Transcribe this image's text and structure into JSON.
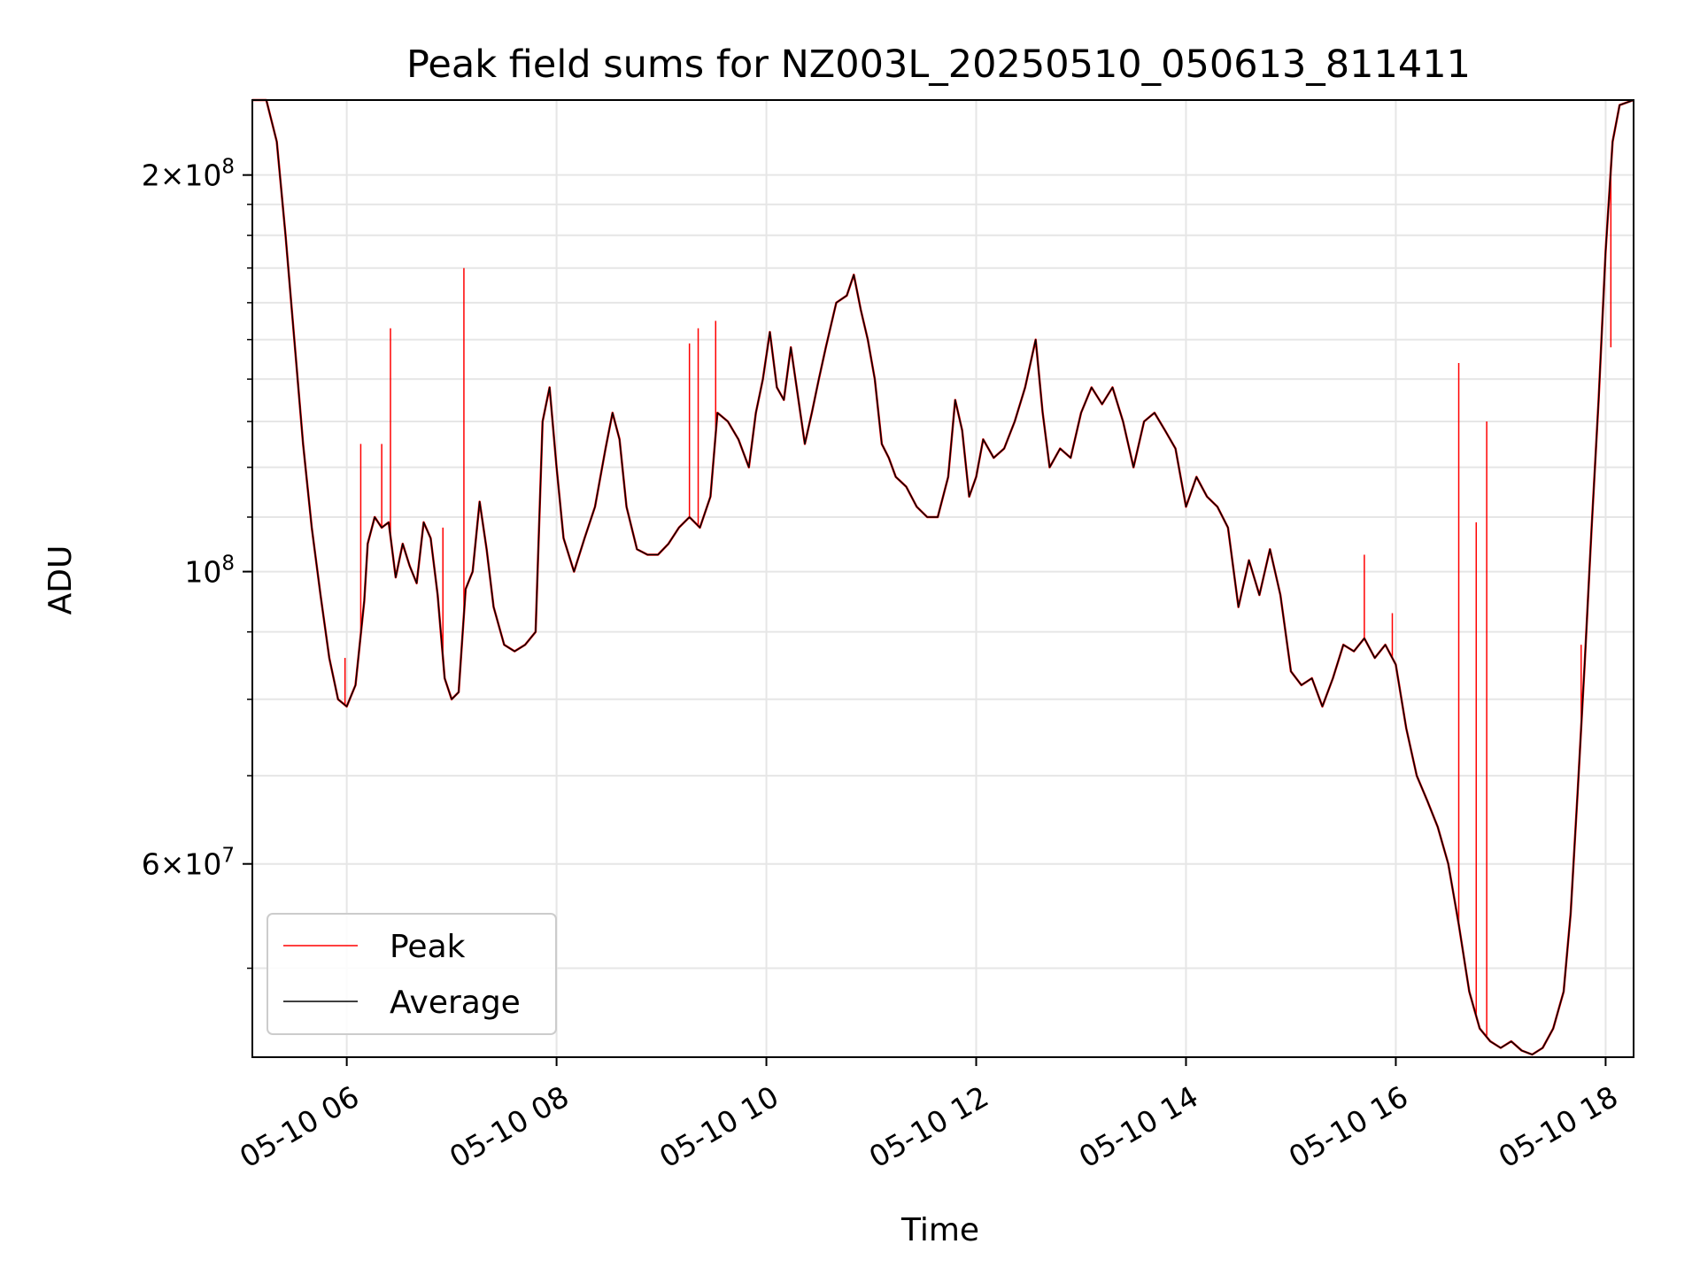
{
  "chart_data": {
    "type": "line",
    "title": "Peak field sums for NZ003L_20250510_050613_811411",
    "xlabel": "Time",
    "ylabel": "ADU",
    "yscale": "log",
    "xlim": [
      "05-10 05:06",
      "05-10 18:16"
    ],
    "ylim": [
      42800000,
      228000000
    ],
    "grid": true,
    "legend_position": "lower-left",
    "x_ticks": [
      "05-10 06",
      "05-10 08",
      "05-10 10",
      "05-10 12",
      "05-10 14",
      "05-10 16",
      "05-10 18"
    ],
    "y_ticks": [
      {
        "value": 60000000,
        "base": "6",
        "exp": "7"
      },
      {
        "value": 100000000,
        "base": "",
        "exp": "8"
      },
      {
        "value": 200000000,
        "base": "2",
        "exp": "8"
      }
    ],
    "series": [
      {
        "name": "Peak",
        "color": "#ff0000"
      },
      {
        "name": "Average",
        "color": "#000000"
      }
    ],
    "average_points": [
      [
        "05-10 05:06",
        228
      ],
      [
        "05-10 05:14",
        228
      ],
      [
        "05-10 05:20",
        212
      ],
      [
        "05-10 05:25",
        180
      ],
      [
        "05-10 05:30",
        150
      ],
      [
        "05-10 05:35",
        125
      ],
      [
        "05-10 05:40",
        108
      ],
      [
        "05-10 05:45",
        96
      ],
      [
        "05-10 05:50",
        86
      ],
      [
        "05-10 05:55",
        80
      ],
      [
        "05-10 06:00",
        79
      ],
      [
        "05-10 06:05",
        82
      ],
      [
        "05-10 06:10",
        95
      ],
      [
        "05-10 06:12",
        105
      ],
      [
        "05-10 06:16",
        110
      ],
      [
        "05-10 06:20",
        108
      ],
      [
        "05-10 06:24",
        109
      ],
      [
        "05-10 06:28",
        99
      ],
      [
        "05-10 06:32",
        105
      ],
      [
        "05-10 06:36",
        101
      ],
      [
        "05-10 06:40",
        98
      ],
      [
        "05-10 06:44",
        109
      ],
      [
        "05-10 06:48",
        106
      ],
      [
        "05-10 06:52",
        96
      ],
      [
        "05-10 06:56",
        83
      ],
      [
        "05-10 07:00",
        80
      ],
      [
        "05-10 07:04",
        81
      ],
      [
        "05-10 07:08",
        97
      ],
      [
        "05-10 07:12",
        100
      ],
      [
        "05-10 07:16",
        113
      ],
      [
        "05-10 07:20",
        104
      ],
      [
        "05-10 07:24",
        94
      ],
      [
        "05-10 07:30",
        88
      ],
      [
        "05-10 07:36",
        87
      ],
      [
        "05-10 07:42",
        88
      ],
      [
        "05-10 07:48",
        90
      ],
      [
        "05-10 07:52",
        130
      ],
      [
        "05-10 07:56",
        138
      ],
      [
        "05-10 08:00",
        120
      ],
      [
        "05-10 08:04",
        106
      ],
      [
        "05-10 08:10",
        100
      ],
      [
        "05-10 08:16",
        106
      ],
      [
        "05-10 08:22",
        112
      ],
      [
        "05-10 08:28",
        124
      ],
      [
        "05-10 08:32",
        132
      ],
      [
        "05-10 08:36",
        126
      ],
      [
        "05-10 08:40",
        112
      ],
      [
        "05-10 08:46",
        104
      ],
      [
        "05-10 08:52",
        103
      ],
      [
        "05-10 08:58",
        103
      ],
      [
        "05-10 09:04",
        105
      ],
      [
        "05-10 09:10",
        108
      ],
      [
        "05-10 09:16",
        110
      ],
      [
        "05-10 09:22",
        108
      ],
      [
        "05-10 09:28",
        114
      ],
      [
        "05-10 09:32",
        132
      ],
      [
        "05-10 09:38",
        130
      ],
      [
        "05-10 09:44",
        126
      ],
      [
        "05-10 09:50",
        120
      ],
      [
        "05-10 09:54",
        132
      ],
      [
        "05-10 09:58",
        140
      ],
      [
        "05-10 10:02",
        152
      ],
      [
        "05-10 10:06",
        138
      ],
      [
        "05-10 10:10",
        135
      ],
      [
        "05-10 10:14",
        148
      ],
      [
        "05-10 10:18",
        136
      ],
      [
        "05-10 10:22",
        125
      ],
      [
        "05-10 10:26",
        132
      ],
      [
        "05-10 10:30",
        140
      ],
      [
        "05-10 10:34",
        148
      ],
      [
        "05-10 10:40",
        160
      ],
      [
        "05-10 10:46",
        162
      ],
      [
        "05-10 10:50",
        168
      ],
      [
        "05-10 10:54",
        158
      ],
      [
        "05-10 10:58",
        150
      ],
      [
        "05-10 11:02",
        140
      ],
      [
        "05-10 11:06",
        125
      ],
      [
        "05-10 11:10",
        122
      ],
      [
        "05-10 11:14",
        118
      ],
      [
        "05-10 11:20",
        116
      ],
      [
        "05-10 11:26",
        112
      ],
      [
        "05-10 11:32",
        110
      ],
      [
        "05-10 11:38",
        110
      ],
      [
        "05-10 11:44",
        118
      ],
      [
        "05-10 11:48",
        135
      ],
      [
        "05-10 11:52",
        128
      ],
      [
        "05-10 11:56",
        114
      ],
      [
        "05-10 12:00",
        118
      ],
      [
        "05-10 12:04",
        126
      ],
      [
        "05-10 12:10",
        122
      ],
      [
        "05-10 12:16",
        124
      ],
      [
        "05-10 12:22",
        130
      ],
      [
        "05-10 12:28",
        138
      ],
      [
        "05-10 12:34",
        150
      ],
      [
        "05-10 12:38",
        132
      ],
      [
        "05-10 12:42",
        120
      ],
      [
        "05-10 12:48",
        124
      ],
      [
        "05-10 12:54",
        122
      ],
      [
        "05-10 13:00",
        132
      ],
      [
        "05-10 13:06",
        138
      ],
      [
        "05-10 13:12",
        134
      ],
      [
        "05-10 13:18",
        138
      ],
      [
        "05-10 13:24",
        130
      ],
      [
        "05-10 13:30",
        120
      ],
      [
        "05-10 13:36",
        130
      ],
      [
        "05-10 13:42",
        132
      ],
      [
        "05-10 13:48",
        128
      ],
      [
        "05-10 13:54",
        124
      ],
      [
        "05-10 14:00",
        112
      ],
      [
        "05-10 14:06",
        118
      ],
      [
        "05-10 14:12",
        114
      ],
      [
        "05-10 14:18",
        112
      ],
      [
        "05-10 14:24",
        108
      ],
      [
        "05-10 14:30",
        94
      ],
      [
        "05-10 14:36",
        102
      ],
      [
        "05-10 14:42",
        96
      ],
      [
        "05-10 14:48",
        104
      ],
      [
        "05-10 14:54",
        96
      ],
      [
        "05-10 15:00",
        84
      ],
      [
        "05-10 15:06",
        82
      ],
      [
        "05-10 15:12",
        83
      ],
      [
        "05-10 15:18",
        79
      ],
      [
        "05-10 15:24",
        83
      ],
      [
        "05-10 15:30",
        88
      ],
      [
        "05-10 15:36",
        87
      ],
      [
        "05-10 15:42",
        89
      ],
      [
        "05-10 15:48",
        86
      ],
      [
        "05-10 15:54",
        88
      ],
      [
        "05-10 16:00",
        85
      ],
      [
        "05-10 16:06",
        76
      ],
      [
        "05-10 16:12",
        70
      ],
      [
        "05-10 16:18",
        67
      ],
      [
        "05-10 16:24",
        64
      ],
      [
        "05-10 16:30",
        60
      ],
      [
        "05-10 16:36",
        54
      ],
      [
        "05-10 16:42",
        48
      ],
      [
        "05-10 16:48",
        45
      ],
      [
        "05-10 16:54",
        44
      ],
      [
        "05-10 17:00",
        43.5
      ],
      [
        "05-10 17:06",
        44
      ],
      [
        "05-10 17:12",
        43.3
      ],
      [
        "05-10 17:18",
        43
      ],
      [
        "05-10 17:24",
        43.5
      ],
      [
        "05-10 17:30",
        45
      ],
      [
        "05-10 17:36",
        48
      ],
      [
        "05-10 17:40",
        55
      ],
      [
        "05-10 17:44",
        68
      ],
      [
        "05-10 17:48",
        85
      ],
      [
        "05-10 17:52",
        108
      ],
      [
        "05-10 17:56",
        135
      ],
      [
        "05-10 18:00",
        175
      ],
      [
        "05-10 18:04",
        212
      ],
      [
        "05-10 18:08",
        226
      ],
      [
        "05-10 18:16",
        228
      ]
    ],
    "peak_spikes": [
      [
        "05-10 05:59",
        86
      ],
      [
        "05-10 06:08",
        125
      ],
      [
        "05-10 06:20",
        125
      ],
      [
        "05-10 06:25",
        153
      ],
      [
        "05-10 06:55",
        108
      ],
      [
        "05-10 07:07",
        170
      ],
      [
        "05-10 09:16",
        149
      ],
      [
        "05-10 09:21",
        153
      ],
      [
        "05-10 09:31",
        155
      ],
      [
        "05-10 15:42",
        103
      ],
      [
        "05-10 15:58",
        93
      ],
      [
        "05-10 16:36",
        144
      ],
      [
        "05-10 16:46",
        109
      ],
      [
        "05-10 16:52",
        130
      ],
      [
        "05-10 17:46",
        88
      ],
      [
        "05-10 18:03",
        148
      ]
    ]
  }
}
